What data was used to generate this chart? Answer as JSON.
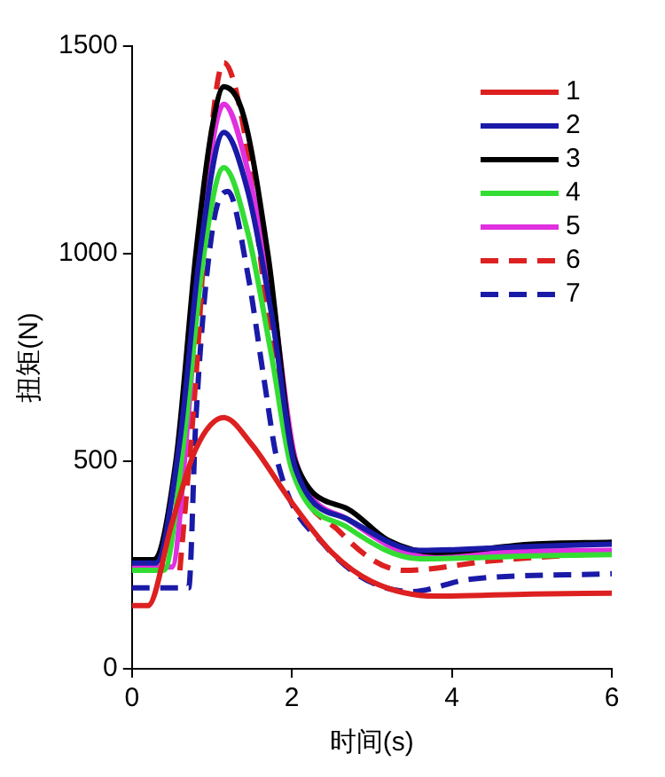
{
  "chart_data": {
    "type": "line",
    "xlabel": "时间(s)",
    "ylabel": "扭矩(N)",
    "xlim": [
      0,
      6
    ],
    "xticks": [
      0,
      2,
      4,
      6
    ],
    "ylim": [
      0,
      1500
    ],
    "yticks": [
      0,
      500,
      1000,
      1500
    ],
    "grid": false,
    "legend": "top right",
    "marker": "none",
    "series": [
      {
        "name": "1",
        "color": "#dd2020",
        "line_style": "solid",
        "x": [
          0,
          0.2,
          0.5,
          0.8,
          1.15,
          1.5,
          2,
          2.5,
          3,
          3.8,
          5,
          6
        ],
        "values": [
          152,
          152,
          350,
          530,
          605,
          540,
          400,
          280,
          210,
          175,
          180,
          182
        ]
      },
      {
        "name": "2",
        "color": "#1a1aa8",
        "line_style": "solid",
        "x": [
          0,
          0.3,
          0.6,
          0.85,
          1.15,
          1.45,
          1.75,
          2.05,
          2.7,
          3.6,
          5,
          6
        ],
        "values": [
          255,
          255,
          550,
          1000,
          1292,
          1150,
          850,
          480,
          360,
          285,
          295,
          300
        ]
      },
      {
        "name": "3",
        "color": "#000000",
        "line_style": "solid",
        "x": [
          0,
          0.27,
          0.55,
          0.8,
          1.0,
          1.15,
          1.4,
          1.7,
          2.04,
          2.7,
          3.2,
          3.8,
          5,
          6
        ],
        "values": [
          263,
          263,
          500,
          1000,
          1300,
          1402,
          1330,
          1000,
          500,
          385,
          310,
          280,
          300,
          305
        ]
      },
      {
        "name": "4",
        "color": "#33dd33",
        "line_style": "solid",
        "x": [
          0,
          0.4,
          0.65,
          0.9,
          1.15,
          1.45,
          1.75,
          2.0,
          2.7,
          3.6,
          5,
          6
        ],
        "values": [
          237,
          237,
          550,
          1000,
          1207,
          1050,
          750,
          480,
          340,
          265,
          272,
          275
        ]
      },
      {
        "name": "5",
        "color": "#e030e0",
        "line_style": "solid",
        "x": [
          0,
          0.5,
          0.7,
          0.9,
          1.15,
          1.45,
          1.75,
          2.05,
          2.7,
          3.6,
          5,
          6
        ],
        "values": [
          245,
          245,
          600,
          1100,
          1360,
          1200,
          900,
          500,
          360,
          275,
          283,
          285
        ]
      },
      {
        "name": "6",
        "color": "#dd2020",
        "line_style": "dashed",
        "x": [
          0.6,
          0.8,
          1.0,
          1.15,
          1.4,
          1.7,
          2.0,
          2.6,
          3.4,
          4.5,
          6
        ],
        "values": [
          237,
          700,
          1300,
          1460,
          1300,
          850,
          500,
          330,
          237,
          260,
          280
        ]
      },
      {
        "name": "7",
        "color": "#1a1aa8",
        "line_style": "dashed",
        "x": [
          0,
          0.71,
          0.8,
          1.0,
          1.2,
          1.45,
          1.65,
          1.82,
          2.4,
          3.5,
          4.2,
          6
        ],
        "values": [
          195,
          195,
          600,
          1050,
          1150,
          950,
          700,
          500,
          300,
          186,
          215,
          229
        ]
      }
    ]
  }
}
